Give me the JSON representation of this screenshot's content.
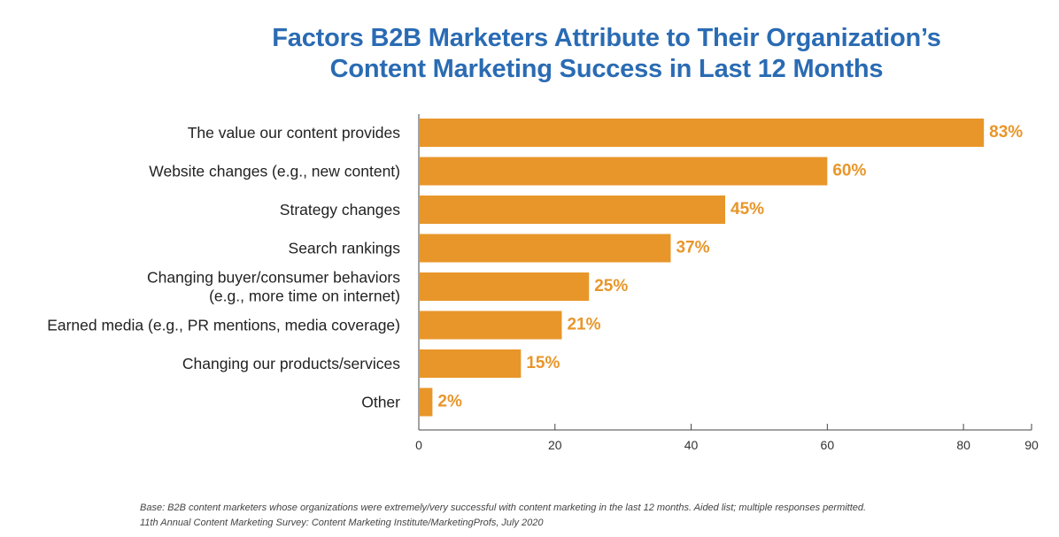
{
  "title_line1": "Factors B2B Marketers Attribute to Their Organization’s",
  "title_line2": "Content Marketing Success in Last 12 Months",
  "chart_data": {
    "type": "bar",
    "orientation": "horizontal",
    "categories": [
      [
        "The value our content provides"
      ],
      [
        "Website changes (e.g., new content)"
      ],
      [
        "Strategy changes"
      ],
      [
        "Search rankings"
      ],
      [
        "Changing buyer/consumer behaviors",
        "(e.g., more time on internet)"
      ],
      [
        "Earned media (e.g., PR mentions, media coverage)"
      ],
      [
        "Changing our products/services"
      ],
      [
        "Other"
      ]
    ],
    "values": [
      83,
      60,
      45,
      37,
      25,
      21,
      15,
      2
    ],
    "value_labels": [
      "83%",
      "60%",
      "45%",
      "37%",
      "25%",
      "21%",
      "15%",
      "2%"
    ],
    "xlim": [
      0,
      90
    ],
    "xticks": [
      0,
      20,
      40,
      60,
      80,
      90
    ],
    "grid": false,
    "bar_color": "#e8962a",
    "label_color": "#e8962a"
  },
  "footnote_line1": "Base: B2B content marketers whose organizations were extremely/very successful with content marketing in the last 12 months. Aided list; multiple responses permitted.",
  "footnote_line2": "11th Annual Content Marketing Survey: Content Marketing Institute/MarketingProfs, July 2020"
}
